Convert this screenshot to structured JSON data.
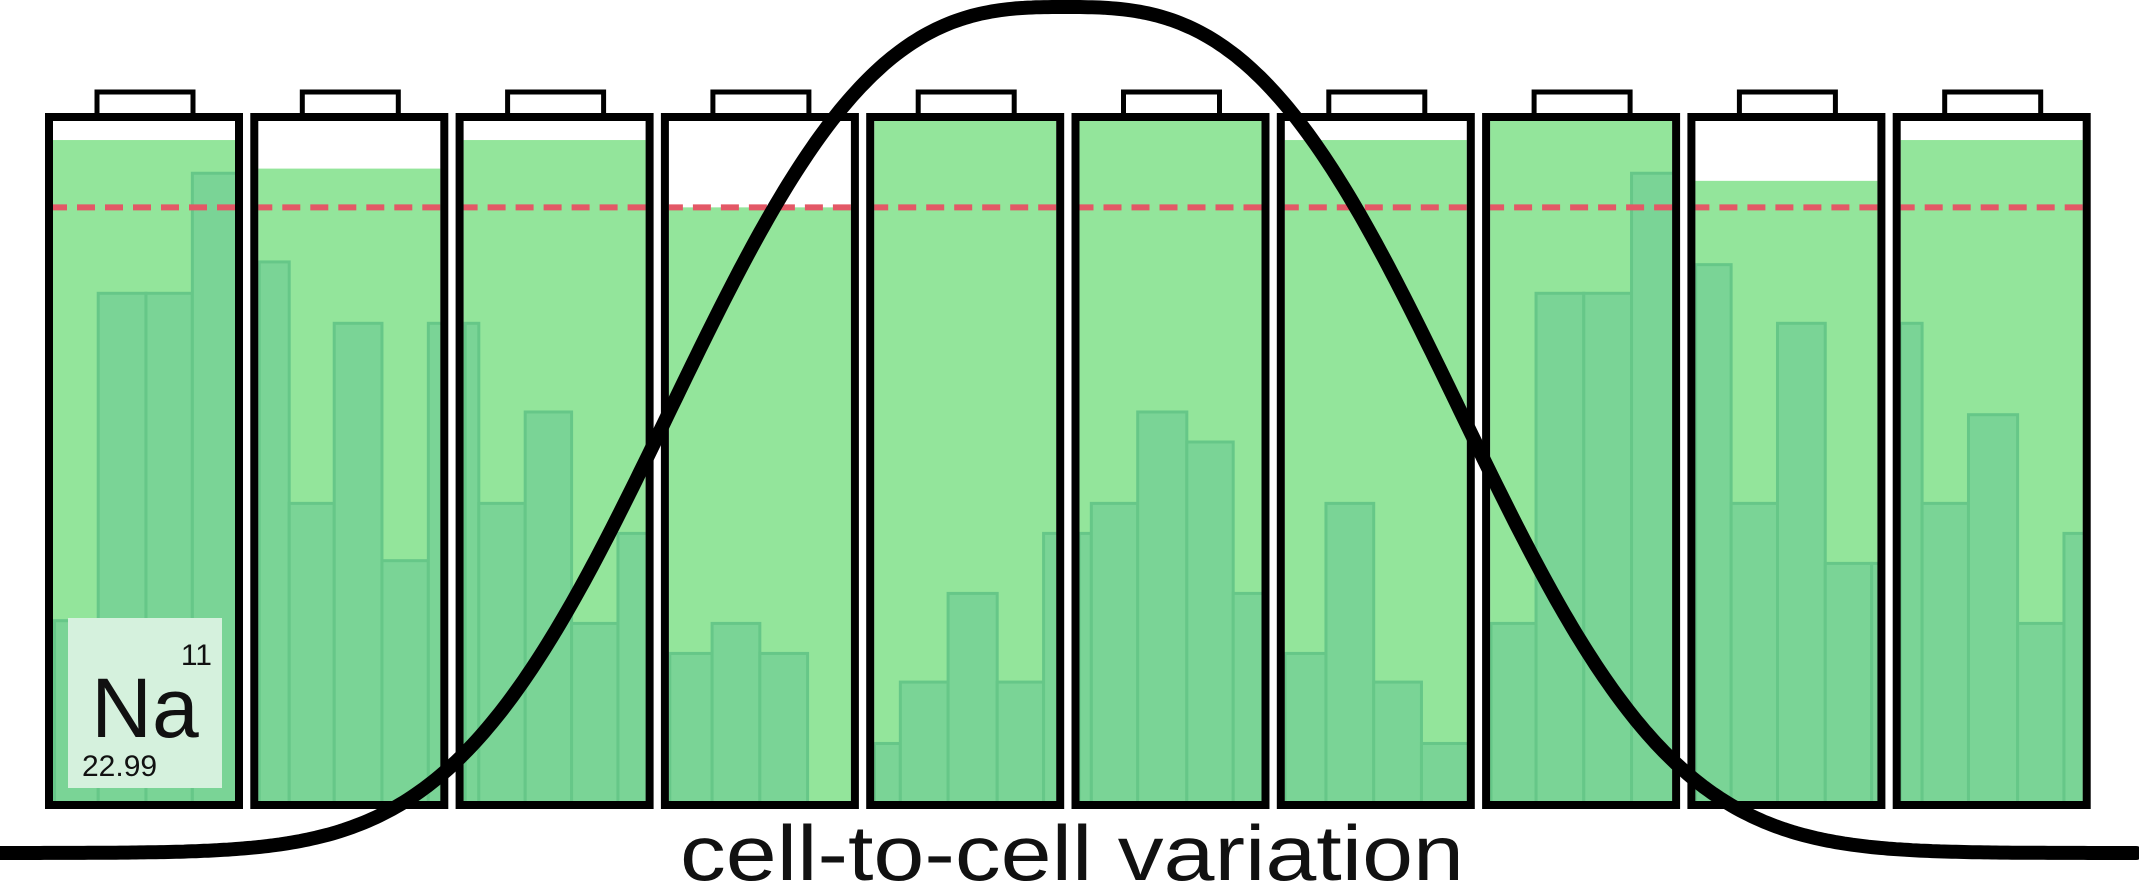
{
  "diagram": {
    "caption": "cell-to-cell variation",
    "element": {
      "symbol": "Na",
      "atomic_number": "11",
      "atomic_mass": "22.99"
    },
    "threshold_level": 0.873,
    "batteries": [
      {
        "charge": 0.972
      },
      {
        "charge": 0.93
      },
      {
        "charge": 0.972
      },
      {
        "charge": 0.873
      },
      {
        "charge": 1.0
      },
      {
        "charge": 1.0
      },
      {
        "charge": 0.972
      },
      {
        "charge": 1.0
      },
      {
        "charge": 0.912
      },
      {
        "charge": 0.972
      }
    ],
    "colors": {
      "charge_fill": "#93e59b",
      "histogram_bar": "#7ad496",
      "histogram_bar_edge": "#66c788",
      "threshold_line": "#e35866",
      "outline": "#000000",
      "element_tile": "#d5f1dd"
    }
  }
}
